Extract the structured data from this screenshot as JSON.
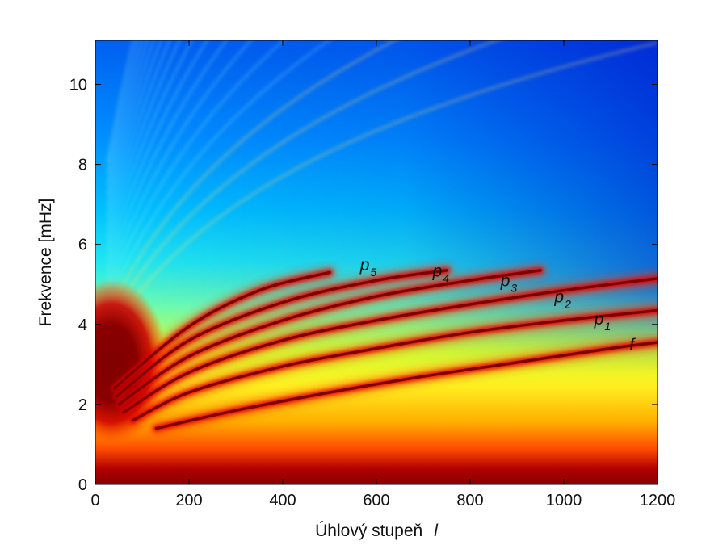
{
  "chart_data": {
    "type": "heatmap",
    "xlabel_text": "Úhlový stupeň",
    "xlabel_symbol": "l",
    "ylabel": "Frekvence [mHz]",
    "xlim": [
      0,
      1200
    ],
    "ylim": [
      0,
      11.1
    ],
    "xticks": [
      "0",
      "200",
      "400",
      "600",
      "800",
      "1000",
      "1200"
    ],
    "yticks": [
      "0",
      "2",
      "4",
      "6",
      "8",
      "10"
    ],
    "colormap": [
      "#00008f",
      "#0000ff",
      "#00ffff",
      "#ffff00",
      "#ff0000",
      "#800000"
    ],
    "ridges": [
      {
        "label": "f",
        "sub": "",
        "label_x": 1140,
        "label_y": 3.35,
        "l": [
          130,
          300,
          500,
          700,
          900,
          1100,
          1200
        ],
        "nu": [
          1.4,
          1.85,
          2.3,
          2.7,
          3.05,
          3.4,
          3.55
        ]
      },
      {
        "label": "p",
        "sub": "1",
        "label_x": 1065,
        "label_y": 4.0,
        "l": [
          80,
          200,
          400,
          600,
          800,
          1000,
          1200
        ],
        "nu": [
          1.6,
          2.3,
          2.95,
          3.4,
          3.8,
          4.1,
          4.35
        ]
      },
      {
        "label": "p",
        "sub": "2",
        "label_x": 980,
        "label_y": 4.55,
        "l": [
          60,
          200,
          400,
          600,
          800,
          1000,
          1200
        ],
        "nu": [
          1.8,
          2.8,
          3.6,
          4.1,
          4.5,
          4.85,
          5.15
        ]
      },
      {
        "label": "p",
        "sub": "3",
        "label_x": 865,
        "label_y": 4.95,
        "l": [
          50,
          200,
          400,
          600,
          800,
          950
        ],
        "nu": [
          2.0,
          3.2,
          4.1,
          4.7,
          5.1,
          5.35
        ]
      },
      {
        "label": "p",
        "sub": "4",
        "label_x": 720,
        "label_y": 5.2,
        "l": [
          45,
          200,
          400,
          600,
          750
        ],
        "nu": [
          2.2,
          3.6,
          4.55,
          5.1,
          5.35
        ]
      },
      {
        "label": "p",
        "sub": "5",
        "label_x": 565,
        "label_y": 5.35,
        "l": [
          40,
          200,
          350,
          500
        ],
        "nu": [
          2.4,
          3.95,
          4.85,
          5.3
        ]
      }
    ]
  }
}
